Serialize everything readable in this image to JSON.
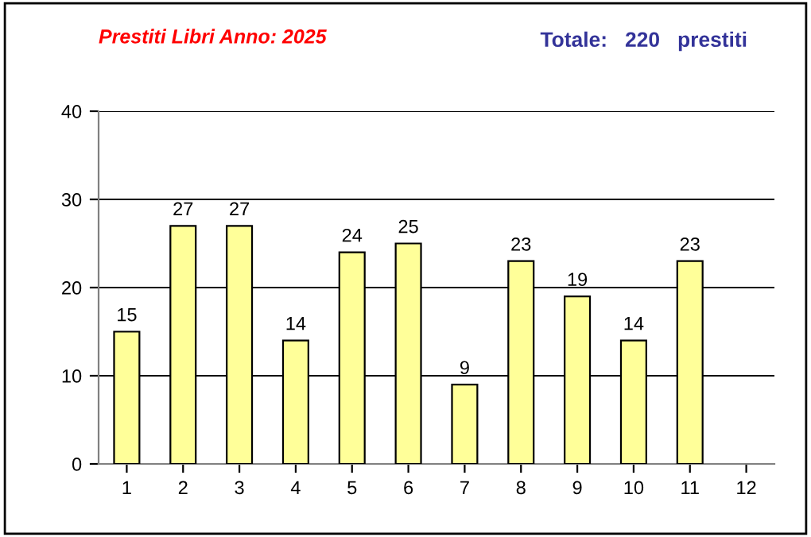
{
  "chart_data": {
    "type": "bar",
    "title": "Prestiti Libri Anno: 2025",
    "subtitle": "Totale:   220   prestiti",
    "categories": [
      "1",
      "2",
      "3",
      "4",
      "5",
      "6",
      "7",
      "8",
      "9",
      "10",
      "11",
      "12"
    ],
    "values": [
      15,
      27,
      27,
      14,
      24,
      25,
      9,
      23,
      19,
      14,
      23,
      null
    ],
    "color": "#ffff99",
    "ylim": [
      0,
      40
    ],
    "yticks": [
      0,
      10,
      20,
      30,
      40
    ],
    "grid": "y",
    "data_labels": true
  }
}
